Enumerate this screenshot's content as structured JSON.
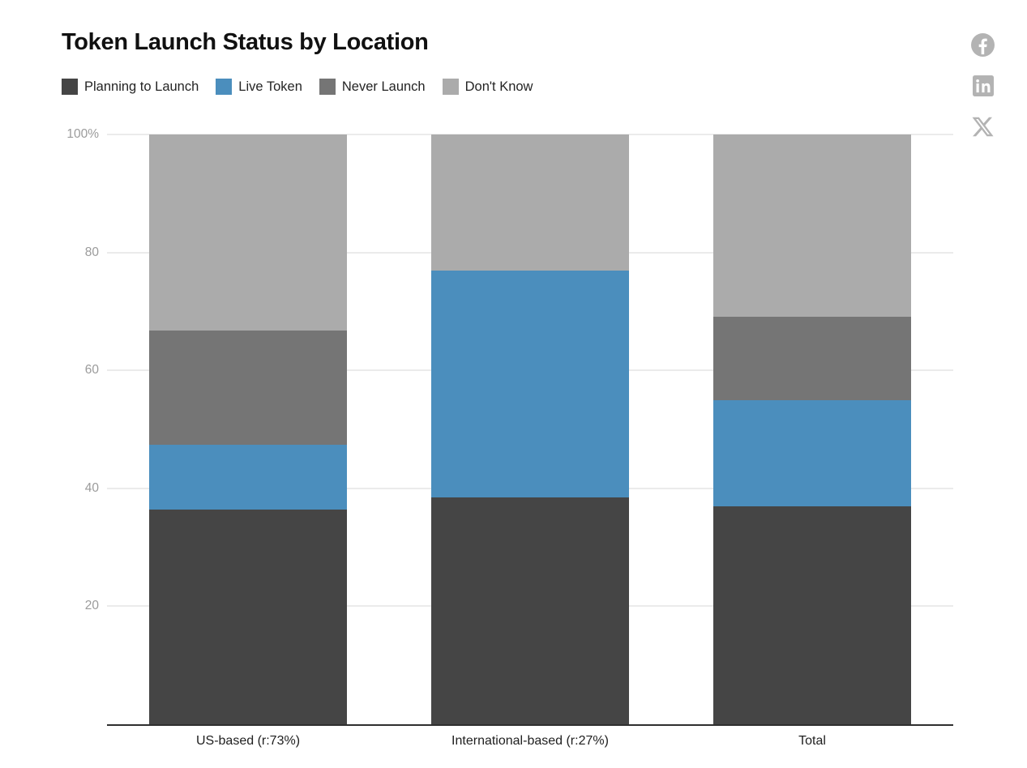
{
  "header": {
    "title": "Token Launch Status by Location"
  },
  "share": {
    "icons": [
      {
        "name": "facebook",
        "color": "#b3b3b3"
      },
      {
        "name": "linkedin",
        "color": "#b3b3b3"
      },
      {
        "name": "x",
        "color": "#b3b3b3"
      }
    ]
  },
  "chart_data": {
    "type": "bar",
    "stacked": true,
    "percent_scale": true,
    "title": "Token Launch Status by Location",
    "categories": [
      "US-based (r:73%)",
      "International-based (r:27%)",
      "Total"
    ],
    "series": [
      {
        "name": "Planning to Launch",
        "color": "#454545",
        "values": [
          36.4,
          38.5,
          37.0
        ]
      },
      {
        "name": "Live Token",
        "color": "#4b8ebd",
        "values": [
          11.0,
          38.4,
          18.0
        ]
      },
      {
        "name": "Never Launch",
        "color": "#757575",
        "values": [
          19.4,
          0.0,
          14.1
        ]
      },
      {
        "name": "Don't Know",
        "color": "#ababab",
        "values": [
          33.2,
          23.1,
          30.9
        ]
      }
    ],
    "ylim": [
      0,
      100
    ],
    "yticks": [
      {
        "value": 100,
        "label": "100%"
      },
      {
        "value": 80,
        "label": "80"
      },
      {
        "value": 60,
        "label": "60"
      },
      {
        "value": 40,
        "label": "40"
      },
      {
        "value": 20,
        "label": "20"
      }
    ],
    "grid": true,
    "legend_position": "top",
    "colors": {
      "axis_line": "#2f2f2f",
      "gridline": "#ebebeb",
      "tick_label": "#9b9b9b",
      "category_label": "#202020"
    }
  }
}
